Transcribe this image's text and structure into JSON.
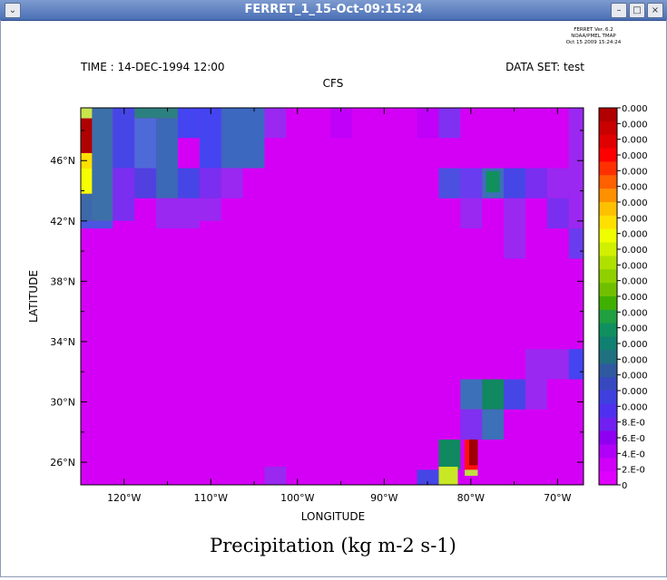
{
  "window": {
    "title": "FERRET_1_15-Oct-09:15:24",
    "buttons": {
      "menu": "⌄",
      "minimize": "–",
      "maximize": "□",
      "close": "×"
    }
  },
  "header": {
    "ferret_lines": [
      "FERRET Ver. 6.2",
      "NOAA/PMEL TMAP",
      "Oct 15 2009 15:24:24"
    ],
    "time": "TIME : 14-DEC-1994 12:00",
    "dataset": "DATA SET: test",
    "subtitle": "CFS"
  },
  "chart_data": {
    "type": "heatmap",
    "title": "Precipitation (kg m-2 s-1)",
    "xlabel": "LONGITUDE",
    "ylabel": "LATITUDE",
    "xlim": [
      -125,
      -67
    ],
    "ylim": [
      24.5,
      49.5
    ],
    "x_ticks": [
      -120,
      -110,
      -100,
      -90,
      -80,
      -70
    ],
    "x_tick_labels": [
      "120°W",
      "110°W",
      "100°W",
      "90°W",
      "80°W",
      "70°W"
    ],
    "y_ticks": [
      26,
      30,
      34,
      38,
      42,
      46
    ],
    "y_tick_labels": [
      "26°N",
      "30°N",
      "34°N",
      "38°N",
      "42°N",
      "46°N"
    ],
    "background_color": "#d400f6",
    "cell_width": 2.5,
    "cell_height": 2,
    "cells": [
      {
        "lon": -125,
        "lat": 48.8,
        "w": 1.3,
        "h": 0.7,
        "c": "#c8e64a"
      },
      {
        "lon": -125,
        "lat": 46.5,
        "w": 1.3,
        "h": 2.3,
        "c": "#b00000"
      },
      {
        "lon": -125,
        "lat": 45.5,
        "w": 1.3,
        "h": 1.0,
        "c": "#ffe000"
      },
      {
        "lon": -125,
        "lat": 43.8,
        "w": 1.3,
        "h": 1.7,
        "c": "#f6ff00"
      },
      {
        "lon": -125,
        "lat": 42.0,
        "w": 1.3,
        "h": 1.8,
        "c": "#3c6aa8"
      },
      {
        "lon": -125,
        "lat": 41.5,
        "w": 3.7,
        "h": 0.5,
        "c": "#4a55e0"
      },
      {
        "lon": -123.7,
        "lat": 42.0,
        "w": 2.4,
        "h": 7.5,
        "c": "#3c70a8"
      },
      {
        "lon": -121.3,
        "lat": 45.5,
        "w": 2.5,
        "h": 4.0,
        "c": "#4646e6"
      },
      {
        "lon": -121.3,
        "lat": 42.0,
        "w": 2.5,
        "h": 3.5,
        "c": "#7a2ef0"
      },
      {
        "lon": -118.8,
        "lat": 48.8,
        "w": 5.0,
        "h": 0.7,
        "c": "#2c8080"
      },
      {
        "lon": -118.8,
        "lat": 45.5,
        "w": 2.5,
        "h": 3.3,
        "c": "#4e6ad8"
      },
      {
        "lon": -118.8,
        "lat": 43.5,
        "w": 2.5,
        "h": 2.0,
        "c": "#5040e0"
      },
      {
        "lon": -116.3,
        "lat": 43.5,
        "w": 2.5,
        "h": 5.3,
        "c": "#3c68b8"
      },
      {
        "lon": -116.3,
        "lat": 41.5,
        "w": 2.5,
        "h": 2.0,
        "c": "#9a28f0"
      },
      {
        "lon": -113.8,
        "lat": 47.5,
        "w": 2.5,
        "h": 2.0,
        "c": "#4444f0"
      },
      {
        "lon": -113.8,
        "lat": 43.5,
        "w": 2.5,
        "h": 2.0,
        "c": "#4646e6"
      },
      {
        "lon": -113.8,
        "lat": 41.5,
        "w": 2.5,
        "h": 2.0,
        "c": "#9a28f0"
      },
      {
        "lon": -111.3,
        "lat": 45.5,
        "w": 2.5,
        "h": 4.0,
        "c": "#4444f0"
      },
      {
        "lon": -111.3,
        "lat": 43.5,
        "w": 2.5,
        "h": 2.0,
        "c": "#7a2ef0"
      },
      {
        "lon": -111.3,
        "lat": 42.0,
        "w": 2.5,
        "h": 1.5,
        "c": "#9a28f0"
      },
      {
        "lon": -108.8,
        "lat": 45.5,
        "w": 5.0,
        "h": 4.0,
        "c": "#3c68c0"
      },
      {
        "lon": -108.8,
        "lat": 43.5,
        "w": 2.5,
        "h": 2.0,
        "c": "#9a28f0"
      },
      {
        "lon": -103.8,
        "lat": 47.5,
        "w": 2.5,
        "h": 2.0,
        "c": "#9a28f0"
      },
      {
        "lon": -96.2,
        "lat": 47.5,
        "w": 2.5,
        "h": 2.0,
        "c": "#c000f8"
      },
      {
        "lon": -86.2,
        "lat": 47.5,
        "w": 2.5,
        "h": 2.0,
        "c": "#c000f8"
      },
      {
        "lon": -83.7,
        "lat": 47.5,
        "w": 2.5,
        "h": 2.0,
        "c": "#8030f0"
      },
      {
        "lon": -83.7,
        "lat": 43.5,
        "w": 2.5,
        "h": 2.0,
        "c": "#4c50e0"
      },
      {
        "lon": -81.2,
        "lat": 43.5,
        "w": 2.5,
        "h": 2.0,
        "c": "#6a3cf0"
      },
      {
        "lon": -81.2,
        "lat": 41.5,
        "w": 2.5,
        "h": 2.0,
        "c": "#9a28f0"
      },
      {
        "lon": -78.7,
        "lat": 43.5,
        "w": 2.5,
        "h": 2.0,
        "c": "#3c70b8"
      },
      {
        "lon": -78.2,
        "lat": 43.9,
        "w": 1.5,
        "h": 1.4,
        "c": "#10905a"
      },
      {
        "lon": -76.2,
        "lat": 43.5,
        "w": 2.5,
        "h": 2.0,
        "c": "#4646e6"
      },
      {
        "lon": -76.2,
        "lat": 39.5,
        "w": 2.5,
        "h": 4.0,
        "c": "#9a28f0"
      },
      {
        "lon": -73.7,
        "lat": 43.5,
        "w": 2.5,
        "h": 2.0,
        "c": "#7a2ef0"
      },
      {
        "lon": -71.2,
        "lat": 43.5,
        "w": 2.5,
        "h": 2.0,
        "c": "#9a28f0"
      },
      {
        "lon": -71.2,
        "lat": 41.5,
        "w": 2.5,
        "h": 2.0,
        "c": "#7a2ef0"
      },
      {
        "lon": -68.7,
        "lat": 41.5,
        "w": 1.7,
        "h": 8.0,
        "c": "#9a28f0"
      },
      {
        "lon": -68.7,
        "lat": 39.5,
        "w": 1.7,
        "h": 2.0,
        "c": "#6a3cf0"
      },
      {
        "lon": -68.7,
        "lat": 31.5,
        "w": 1.7,
        "h": 2.0,
        "c": "#4444f0"
      },
      {
        "lon": -71.2,
        "lat": 31.5,
        "w": 2.5,
        "h": 2.0,
        "c": "#9a28f0"
      },
      {
        "lon": -73.7,
        "lat": 29.5,
        "w": 2.5,
        "h": 4.0,
        "c": "#9a28f0"
      },
      {
        "lon": -76.2,
        "lat": 29.5,
        "w": 2.5,
        "h": 2.0,
        "c": "#4646e6"
      },
      {
        "lon": -78.7,
        "lat": 29.5,
        "w": 2.5,
        "h": 2.0,
        "c": "#108860"
      },
      {
        "lon": -81.2,
        "lat": 29.5,
        "w": 2.5,
        "h": 2.0,
        "c": "#3c70b8"
      },
      {
        "lon": -81.2,
        "lat": 27.5,
        "w": 2.5,
        "h": 2.0,
        "c": "#8030f0"
      },
      {
        "lon": -83.7,
        "lat": 25.5,
        "w": 2.5,
        "h": 2.0,
        "c": "#108860"
      },
      {
        "lon": -78.7,
        "lat": 27.5,
        "w": 2.5,
        "h": 2.0,
        "c": "#3c70b8"
      },
      {
        "lon": -80.7,
        "lat": 25.5,
        "w": 1.5,
        "h": 2.0,
        "c": "#ff1010"
      },
      {
        "lon": -80.2,
        "lat": 25.8,
        "w": 1.0,
        "h": 1.7,
        "c": "#a00000"
      },
      {
        "lon": -80.7,
        "lat": 25.1,
        "w": 1.5,
        "h": 0.4,
        "c": "#c0e040"
      },
      {
        "lon": -86.2,
        "lat": 24.5,
        "w": 2.5,
        "h": 1.0,
        "c": "#4646e6"
      },
      {
        "lon": -83.7,
        "lat": 24.5,
        "w": 2.2,
        "h": 1.2,
        "c": "#c8e826"
      },
      {
        "lon": -103.8,
        "lat": 24.5,
        "w": 2.5,
        "h": 1.2,
        "c": "#9a28f0"
      }
    ],
    "colorbar": {
      "colors": [
        "#b00000",
        "#c80000",
        "#e00000",
        "#ff0000",
        "#ff3000",
        "#ff6000",
        "#ff9000",
        "#ffc000",
        "#ffe000",
        "#f0ff00",
        "#d0f000",
        "#b0e000",
        "#90d000",
        "#70c000",
        "#40b000",
        "#20a040",
        "#109060",
        "#108070",
        "#207080",
        "#305aa0",
        "#3848c0",
        "#4040e0",
        "#5030f0",
        "#7020f0",
        "#9000f0",
        "#b000f8",
        "#d000f8",
        "#e000ff"
      ],
      "labels": [
        "0.000",
        "0.000",
        "0.000",
        "0.000",
        "0.000",
        "0.000",
        "0.000",
        "0.000",
        "0.000",
        "0.000",
        "0.000",
        "0.000",
        "0.000",
        "0.000",
        "0.000",
        "0.000",
        "0.000",
        "0.000",
        "0.000",
        "0.000",
        "8.E-0",
        "6.E-0",
        "4.E-0",
        "2.E-0",
        "0"
      ]
    }
  }
}
